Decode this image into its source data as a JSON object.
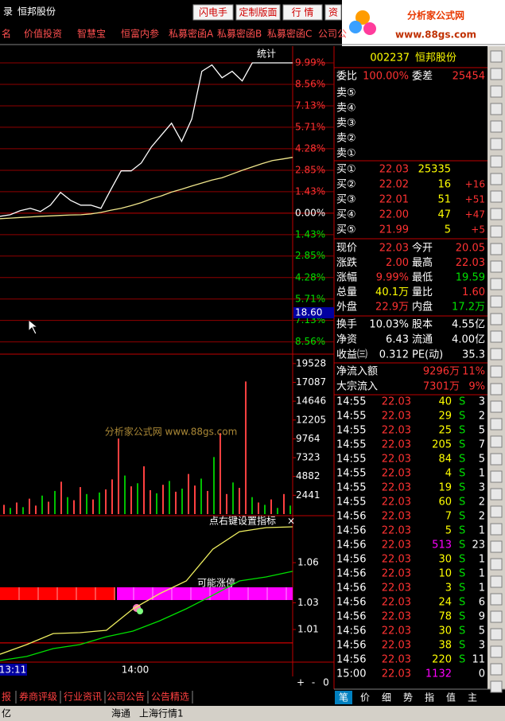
{
  "title_bar": {
    "left": "录",
    "stock": "恒邦股份",
    "buttons": [
      "闪电手",
      "定制版面",
      "行 情",
      "资"
    ],
    "logo_text": "分析家公式网",
    "logo_url": "www.88gs.com"
  },
  "menu": [
    "名",
    "价值投资",
    "智慧宝",
    "恒富内参",
    "私募密函A",
    "私募密函B",
    "私募密函C",
    "公司公"
  ],
  "price_chart": {
    "type": "line",
    "label": "统计",
    "cursor_label": "18.60",
    "ylim": [
      -9.37,
      11.1
    ],
    "yticks": [
      {
        "value": 9.99,
        "label": "9.99%"
      },
      {
        "value": 8.56,
        "label": "8.56%"
      },
      {
        "value": 7.13,
        "label": "7.13%"
      },
      {
        "value": 5.71,
        "label": "5.71%"
      },
      {
        "value": 4.28,
        "label": "4.28%"
      },
      {
        "value": 2.85,
        "label": "2.85%"
      },
      {
        "value": 1.43,
        "label": "1.43%"
      },
      {
        "value": 0,
        "label": "0.00%"
      },
      {
        "value": -1.43,
        "label": "1.43%"
      },
      {
        "value": -2.85,
        "label": "2.85%"
      },
      {
        "value": -4.28,
        "label": "4.28%"
      },
      {
        "value": -5.71,
        "label": "5.71%"
      },
      {
        "value": -7.13,
        "label": "7.13%"
      },
      {
        "value": -8.56,
        "label": "8.56%"
      }
    ],
    "price": [
      -0.21,
      -0.11,
      0.16,
      0.32,
      0.11,
      0.53,
      1.38,
      0.85,
      0.53,
      0.53,
      0.32,
      1.59,
      2.81,
      2.81,
      3.34,
      4.4,
      5.19,
      5.98,
      4.77,
      6.25,
      9.43,
      9.85,
      9.0,
      9.43,
      8.79,
      9.99,
      9.99,
      9.99,
      9.99,
      9.99
    ],
    "avg": [
      -0.37,
      -0.33,
      -0.29,
      -0.25,
      -0.21,
      -0.18,
      -0.15,
      -0.12,
      -0.11,
      -0.05,
      0.05,
      0.2,
      0.32,
      0.5,
      0.7,
      0.95,
      1.15,
      1.4,
      1.59,
      1.8,
      2.0,
      2.2,
      2.35,
      2.6,
      2.85,
      3.07,
      3.3,
      3.5,
      3.6,
      3.71
    ],
    "price_color": "#ffffff",
    "avg_color": "#f0e68c"
  },
  "watermark": "分析家公式网 www.88gs.com",
  "volume_chart": {
    "type": "bar",
    "ylim": [
      0,
      20750
    ],
    "yticks": [
      19528,
      17087,
      14646,
      12205,
      9764,
      7323,
      4882,
      2441
    ],
    "values": [
      1200,
      800,
      1500,
      900,
      2000,
      1100,
      2400,
      1600,
      3000,
      4200,
      2200,
      1800,
      3500,
      2600,
      1900,
      2800,
      3200,
      4500,
      9800,
      5000,
      3600,
      4000,
      6200,
      3100,
      2700,
      3800,
      4300,
      2900,
      3300,
      5200,
      3700,
      4600,
      3000,
      7400,
      10500,
      2600,
      4100,
      3400,
      17200,
      2200,
      1500,
      1200,
      1900,
      800,
      2600,
      1100
    ],
    "up": [
      true,
      false,
      true,
      false,
      true,
      true,
      false,
      true,
      false,
      true,
      false,
      true,
      true,
      false,
      true,
      false,
      true,
      true,
      true,
      false,
      true,
      false,
      true,
      true,
      false,
      true,
      false,
      true,
      false,
      true,
      true,
      false,
      true,
      false,
      true,
      true,
      false,
      true,
      true,
      false,
      true,
      false,
      true,
      false,
      true,
      false
    ],
    "up_color": "#ff4040",
    "down_color": "#00c000"
  },
  "indicator_chart": {
    "type": "line",
    "title": "点右键设置指标",
    "close": "×",
    "signal_text": "可能涨停",
    "ylim": [
      0.9856,
      1.088
    ],
    "yticks": [
      1.06,
      1.03,
      1.01
    ],
    "ref_line": 1.0,
    "series": [
      {
        "color": "#f0f060",
        "values": [
          0.9915,
          0.9987,
          1.007,
          1.0076,
          1.0094,
          1.0255,
          1.0368,
          1.0463,
          1.0701,
          1.0832,
          1.0862,
          1.0868
        ]
      },
      {
        "color": "#00e000",
        "values": [
          0.9868,
          0.9898,
          0.9957,
          0.9987,
          1.0046,
          1.0088,
          1.0165,
          1.0255,
          1.0356,
          1.0463,
          1.0493,
          1.0535
        ]
      }
    ]
  },
  "time_axis": [
    "13:11",
    "14:00"
  ],
  "zoom_buttons": [
    "+",
    "-",
    "0"
  ],
  "bottom_tabs": [
    "报",
    "券商评级",
    "行业资讯",
    "公司公告",
    "公告精选"
  ],
  "status_bar": [
    "亿",
    "海通",
    "上海行情1"
  ],
  "quote": {
    "code": "002237",
    "name": "恒邦股份",
    "weibi_label": "委比",
    "weibi": "100.00%",
    "weicha_label": "委差",
    "weicha": "25454",
    "asks": [
      "卖⑤",
      "卖④",
      "卖③",
      "卖②",
      "卖①"
    ],
    "bids": [
      {
        "label": "买①",
        "price": "22.03",
        "vol": "25335"
      },
      {
        "label": "买②",
        "price": "22.02",
        "vol": "16",
        "change": "+16"
      },
      {
        "label": "买③",
        "price": "22.01",
        "vol": "51",
        "change": "+51"
      },
      {
        "label": "买④",
        "price": "22.00",
        "vol": "47",
        "change": "+47"
      },
      {
        "label": "买⑤",
        "price": "21.99",
        "vol": "5",
        "change": "+5"
      }
    ],
    "stats": [
      {
        "cells": [
          "现价",
          "22.03",
          "今开",
          "20.05"
        ],
        "colors": [
          "#ff3232",
          "#ff3232"
        ]
      },
      {
        "cells": [
          "涨跌",
          "2.00",
          "最高",
          "22.03"
        ],
        "colors": [
          "#ff3232",
          "#ff3232"
        ]
      },
      {
        "cells": [
          "涨幅",
          "9.99%",
          "最低",
          "19.59"
        ],
        "colors": [
          "#ff3232",
          "#00e000"
        ]
      },
      {
        "cells": [
          "总量",
          "40.1万",
          "量比",
          "1.60"
        ],
        "colors": [
          "#ffff00",
          "#ff3232"
        ]
      },
      {
        "cells": [
          "外盘",
          "22.9万",
          "内盘",
          "17.2万"
        ],
        "colors": [
          "#ff3232",
          "#00e000"
        ]
      },
      {
        "cells": [
          "换手",
          "10.03%",
          "股本",
          "4.55亿"
        ],
        "colors": [
          "#ffffff",
          "#ffffff"
        ]
      },
      {
        "cells": [
          "净资",
          "6.43",
          "流通",
          "4.00亿"
        ],
        "colors": [
          "#ffffff",
          "#ffffff"
        ]
      },
      {
        "cells": [
          "收益㈢",
          "0.312",
          "PE(动)",
          "35.3"
        ],
        "colors": [
          "#ffffff",
          "#ffffff"
        ]
      }
    ],
    "flows": [
      [
        "净流入额",
        "9296万",
        "11%"
      ],
      [
        "大宗流入",
        "7301万",
        "9%"
      ]
    ],
    "ticks": [
      {
        "time": "14:55",
        "price": "22.03",
        "vol": "40",
        "side": "S",
        "count": "3"
      },
      {
        "time": "14:55",
        "price": "22.03",
        "vol": "29",
        "side": "S",
        "count": "2"
      },
      {
        "time": "14:55",
        "price": "22.03",
        "vol": "25",
        "side": "S",
        "count": "5"
      },
      {
        "time": "14:55",
        "price": "22.03",
        "vol": "205",
        "side": "S",
        "count": "7"
      },
      {
        "time": "14:55",
        "price": "22.03",
        "vol": "84",
        "side": "S",
        "count": "5"
      },
      {
        "time": "14:55",
        "price": "22.03",
        "vol": "4",
        "side": "S",
        "count": "1"
      },
      {
        "time": "14:55",
        "price": "22.03",
        "vol": "19",
        "side": "S",
        "count": "3"
      },
      {
        "time": "14:55",
        "price": "22.03",
        "vol": "60",
        "side": "S",
        "count": "2"
      },
      {
        "time": "14:56",
        "price": "22.03",
        "vol": "7",
        "side": "S",
        "count": "2"
      },
      {
        "time": "14:56",
        "price": "22.03",
        "vol": "5",
        "side": "S",
        "count": "1"
      },
      {
        "time": "14:56",
        "price": "22.03",
        "vol": "513",
        "side": "S",
        "count": "23",
        "color": "#ff00ff"
      },
      {
        "time": "14:56",
        "price": "22.03",
        "vol": "30",
        "side": "S",
        "count": "1"
      },
      {
        "time": "14:56",
        "price": "22.03",
        "vol": "10",
        "side": "S",
        "count": "1"
      },
      {
        "time": "14:56",
        "price": "22.03",
        "vol": "3",
        "side": "S",
        "count": "1"
      },
      {
        "time": "14:56",
        "price": "22.03",
        "vol": "24",
        "side": "S",
        "count": "6"
      },
      {
        "time": "14:56",
        "price": "22.03",
        "vol": "78",
        "side": "S",
        "count": "9"
      },
      {
        "time": "14:56",
        "price": "22.03",
        "vol": "30",
        "side": "S",
        "count": "5"
      },
      {
        "time": "14:56",
        "price": "22.03",
        "vol": "38",
        "side": "S",
        "count": "3"
      },
      {
        "time": "14:56",
        "price": "22.03",
        "vol": "220",
        "side": "S",
        "count": "11"
      },
      {
        "time": "15:00",
        "price": "22.03",
        "vol": "1132",
        "count": "0",
        "color": "#ff00ff"
      }
    ],
    "tabs": [
      "笔",
      "价",
      "细",
      "势",
      "指",
      "值",
      "主"
    ]
  }
}
